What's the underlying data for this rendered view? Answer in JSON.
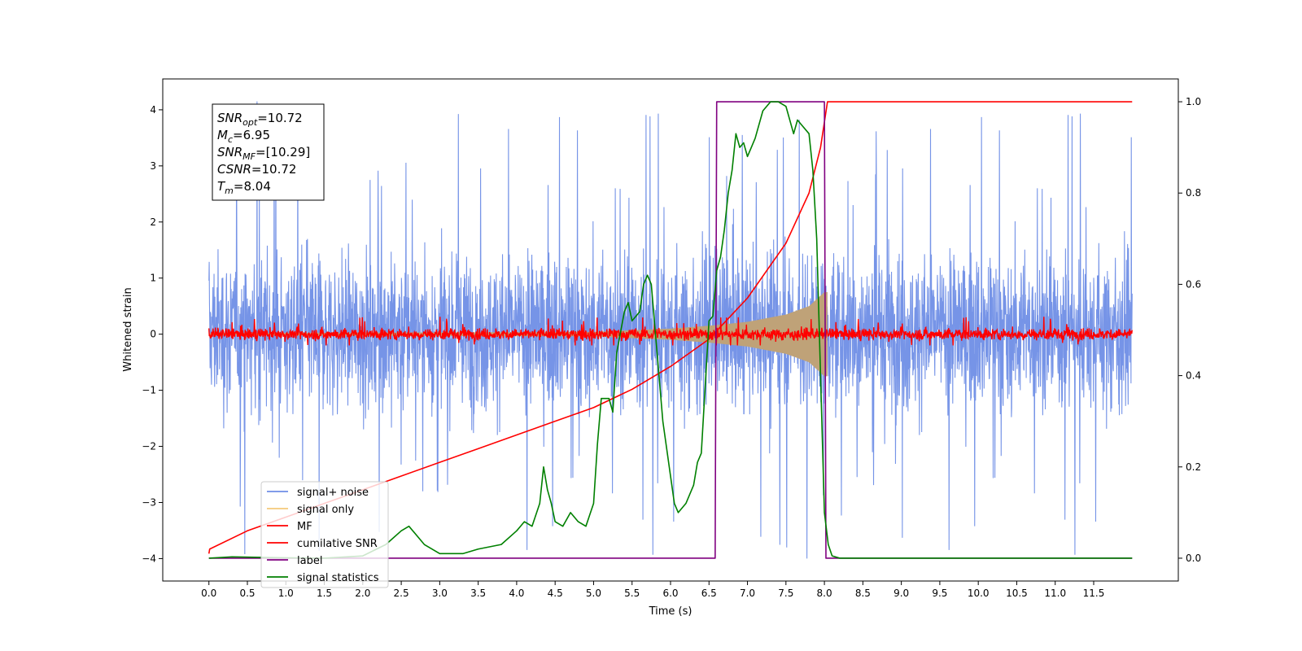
{
  "chart_data": {
    "type": "line",
    "xlabel": "Time (s)",
    "ylabel": "Whitened strain",
    "xlim": [
      -0.6,
      12.6
    ],
    "ylim_left": [
      -4.4,
      4.55
    ],
    "ylim_right": [
      -0.05,
      1.05
    ],
    "x_ticks": [
      "0.0",
      "0.5",
      "1.0",
      "1.5",
      "2.0",
      "2.5",
      "3.0",
      "3.5",
      "4.0",
      "4.5",
      "5.0",
      "5.5",
      "6.0",
      "6.5",
      "7.0",
      "7.5",
      "8.0",
      "8.5",
      "9.0",
      "9.5",
      "10.0",
      "10.5",
      "11.0",
      "11.5"
    ],
    "y_ticks_left": [
      "4",
      "3",
      "2",
      "1",
      "0",
      "−1",
      "−2",
      "−3",
      "−4"
    ],
    "y_ticks_right": [
      "1.0",
      "0.8",
      "0.6",
      "0.4",
      "0.2",
      "0.0"
    ],
    "annotation": {
      "lines": [
        {
          "base": "SNR",
          "sub": "opt",
          "rest": "=10.72"
        },
        {
          "base": "M",
          "sub": "c",
          "rest": "=6.95"
        },
        {
          "base": "SNR",
          "sub": "MF",
          "rest": "=[10.29]"
        },
        {
          "base": "CSNR",
          "sub": "",
          "rest": "=10.72"
        },
        {
          "base": "T",
          "sub": "m",
          "rest": "=8.04"
        }
      ]
    },
    "legend_position": "lower-left",
    "series": [
      {
        "name": "signal+ noise",
        "color": "#6f8ee6",
        "axis": "left",
        "kind": "noise",
        "x_range": [
          0.0,
          12.0
        ],
        "band": [
          -1.5,
          1.6
        ],
        "peak_range": [
          -4.0,
          4.15
        ]
      },
      {
        "name": "signal only",
        "color": "#f5c97a",
        "axis": "left",
        "kind": "chirp",
        "x_range": [
          0.0,
          8.04
        ],
        "envelope": {
          "x": [
            0.0,
            5.0,
            6.0,
            6.5,
            7.0,
            7.5,
            7.8,
            8.0
          ],
          "y": [
            0.02,
            0.04,
            0.1,
            0.15,
            0.22,
            0.35,
            0.5,
            0.75
          ]
        }
      },
      {
        "name": "MF",
        "color": "#ff0000",
        "axis": "left",
        "kind": "noise",
        "x_range": [
          0.0,
          12.0
        ],
        "band": [
          -0.12,
          0.12
        ],
        "peak_range": [
          -0.2,
          0.35
        ]
      },
      {
        "name": "cumilative SNR",
        "color": "#ff0000",
        "axis": "right",
        "x": [
          0.0,
          0.01,
          0.5,
          1.0,
          1.5,
          2.0,
          2.5,
          3.0,
          3.5,
          4.0,
          4.5,
          5.0,
          5.5,
          6.0,
          6.5,
          7.0,
          7.5,
          7.8,
          7.95,
          8.04,
          8.1,
          12.0
        ],
        "y": [
          0.01,
          0.02,
          0.06,
          0.09,
          0.12,
          0.15,
          0.18,
          0.21,
          0.24,
          0.27,
          0.3,
          0.33,
          0.37,
          0.42,
          0.48,
          0.57,
          0.69,
          0.8,
          0.9,
          1.0,
          1.0,
          1.0
        ]
      },
      {
        "name": "label",
        "color": "#800080",
        "axis": "right",
        "x": [
          0.0,
          6.58,
          6.6,
          8.0,
          8.02,
          12.0
        ],
        "y": [
          0.0,
          0.0,
          1.0,
          1.0,
          0.0,
          0.0
        ]
      },
      {
        "name": "signal statistics",
        "color": "#008000",
        "axis": "right",
        "x": [
          0.0,
          0.3,
          0.6,
          1.0,
          1.5,
          2.0,
          2.3,
          2.5,
          2.6,
          2.8,
          3.0,
          3.3,
          3.5,
          3.8,
          4.0,
          4.1,
          4.2,
          4.3,
          4.35,
          4.4,
          4.45,
          4.5,
          4.6,
          4.7,
          4.8,
          4.9,
          5.0,
          5.05,
          5.1,
          5.2,
          5.25,
          5.3,
          5.4,
          5.45,
          5.5,
          5.6,
          5.65,
          5.7,
          5.75,
          5.8,
          5.85,
          5.9,
          6.0,
          6.05,
          6.1,
          6.2,
          6.3,
          6.35,
          6.4,
          6.5,
          6.55,
          6.6,
          6.65,
          6.7,
          6.75,
          6.8,
          6.85,
          6.9,
          6.95,
          7.0,
          7.05,
          7.1,
          7.2,
          7.3,
          7.4,
          7.5,
          7.6,
          7.65,
          7.7,
          7.8,
          7.85,
          7.9,
          7.95,
          8.0,
          8.05,
          8.1,
          8.2,
          8.5,
          9.0,
          10.0,
          11.0,
          12.0
        ],
        "y": [
          0.0,
          0.003,
          0.002,
          0.001,
          0.0,
          0.005,
          0.03,
          0.06,
          0.07,
          0.03,
          0.01,
          0.01,
          0.02,
          0.03,
          0.06,
          0.08,
          0.07,
          0.12,
          0.2,
          0.15,
          0.12,
          0.08,
          0.07,
          0.1,
          0.08,
          0.07,
          0.12,
          0.25,
          0.35,
          0.35,
          0.32,
          0.45,
          0.54,
          0.56,
          0.52,
          0.54,
          0.6,
          0.62,
          0.6,
          0.5,
          0.4,
          0.3,
          0.18,
          0.12,
          0.1,
          0.12,
          0.16,
          0.21,
          0.23,
          0.52,
          0.53,
          0.63,
          0.66,
          0.72,
          0.8,
          0.85,
          0.93,
          0.9,
          0.91,
          0.88,
          0.9,
          0.92,
          0.98,
          1.0,
          1.0,
          0.99,
          0.93,
          0.96,
          0.95,
          0.93,
          0.85,
          0.7,
          0.4,
          0.1,
          0.03,
          0.005,
          0.0,
          0.0,
          0.0,
          0.0,
          0.0,
          0.0
        ]
      }
    ]
  }
}
